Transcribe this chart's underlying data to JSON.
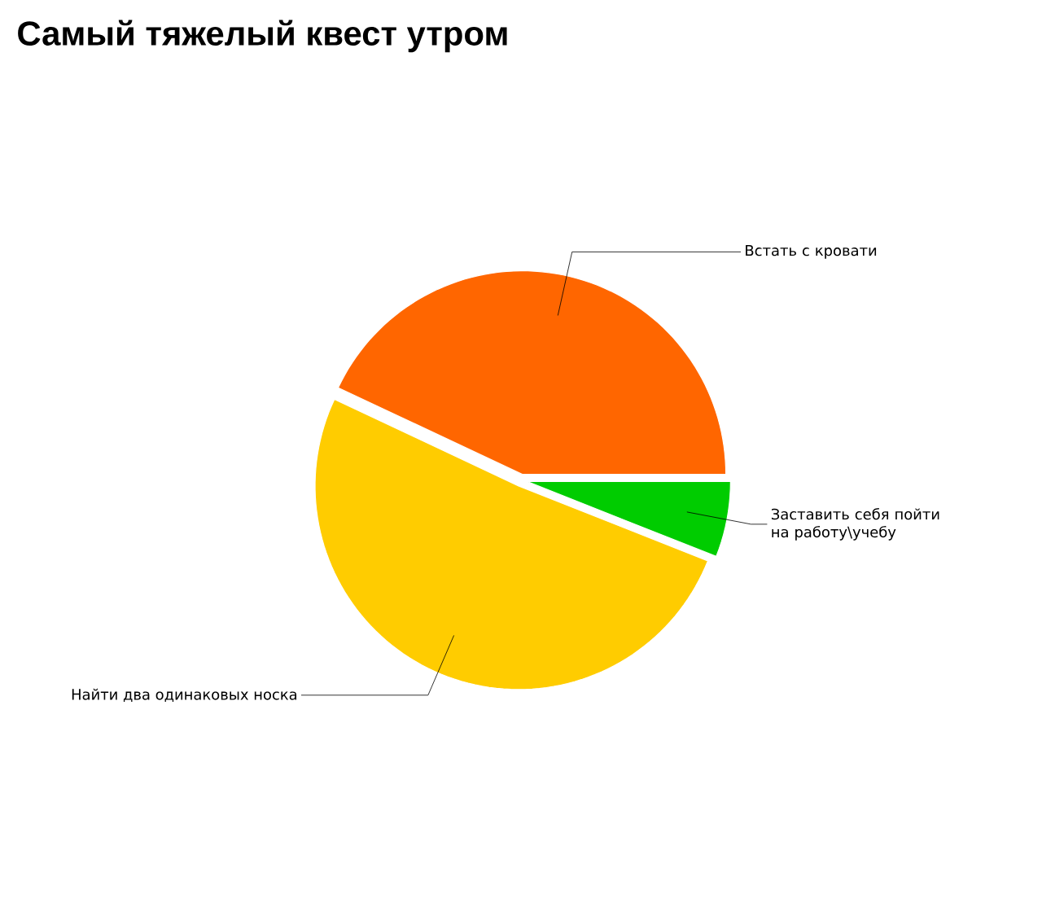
{
  "chart_data": {
    "type": "pie",
    "title": "Самый тяжелый квест утром",
    "categories": [
      "Встать с кровати",
      "Найти два одинаковых носка",
      "Заставить себя пойти на работу\\учебу"
    ],
    "values": [
      43,
      51,
      6
    ],
    "colors": [
      "#ff6600",
      "#ffcc00",
      "#00cc00"
    ]
  }
}
